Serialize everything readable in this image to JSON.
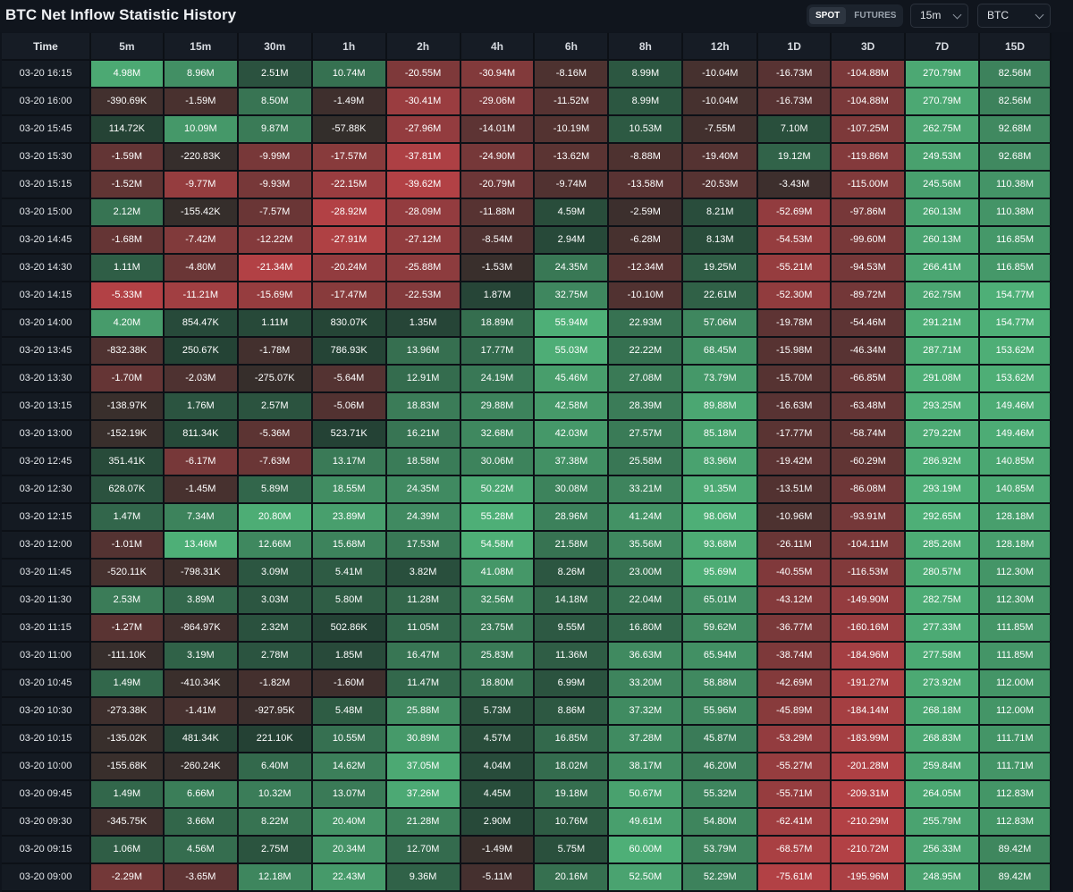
{
  "header": {
    "title": "BTC Net Inflow Statistic History",
    "market_tabs": [
      {
        "label": "SPOT",
        "active": true
      },
      {
        "label": "FUTURES",
        "active": false
      }
    ],
    "interval_select": "15m",
    "asset_select": "BTC"
  },
  "table": {
    "columns": [
      "Time",
      "5m",
      "15m",
      "30m",
      "1h",
      "2h",
      "4h",
      "6h",
      "8h",
      "12h",
      "1D",
      "3D",
      "7D",
      "15D"
    ],
    "rows": [
      [
        "03-20 16:15",
        "4.98M",
        "8.96M",
        "2.51M",
        "10.74M",
        "-20.55M",
        "-30.94M",
        "-8.16M",
        "8.99M",
        "-10.04M",
        "-16.73M",
        "-104.88M",
        "270.79M",
        "82.56M"
      ],
      [
        "03-20 16:00",
        "-390.69K",
        "-1.59M",
        "8.50M",
        "-1.49M",
        "-30.41M",
        "-29.06M",
        "-11.52M",
        "8.99M",
        "-10.04M",
        "-16.73M",
        "-104.88M",
        "270.79M",
        "82.56M"
      ],
      [
        "03-20 15:45",
        "114.72K",
        "10.09M",
        "9.87M",
        "-57.88K",
        "-27.96M",
        "-14.01M",
        "-10.19M",
        "10.53M",
        "-7.55M",
        "7.10M",
        "-107.25M",
        "262.75M",
        "92.68M"
      ],
      [
        "03-20 15:30",
        "-1.59M",
        "-220.83K",
        "-9.99M",
        "-17.57M",
        "-37.81M",
        "-24.90M",
        "-13.62M",
        "-8.88M",
        "-19.40M",
        "19.12M",
        "-119.86M",
        "249.53M",
        "92.68M"
      ],
      [
        "03-20 15:15",
        "-1.52M",
        "-9.77M",
        "-9.93M",
        "-22.15M",
        "-39.62M",
        "-20.79M",
        "-9.74M",
        "-13.58M",
        "-20.53M",
        "-3.43M",
        "-115.00M",
        "245.56M",
        "110.38M"
      ],
      [
        "03-20 15:00",
        "2.12M",
        "-155.42K",
        "-7.57M",
        "-28.92M",
        "-28.09M",
        "-11.88M",
        "4.59M",
        "-2.59M",
        "8.21M",
        "-52.69M",
        "-97.86M",
        "260.13M",
        "110.38M"
      ],
      [
        "03-20 14:45",
        "-1.68M",
        "-7.42M",
        "-12.22M",
        "-27.91M",
        "-27.12M",
        "-8.54M",
        "2.94M",
        "-6.28M",
        "8.13M",
        "-54.53M",
        "-99.60M",
        "260.13M",
        "116.85M"
      ],
      [
        "03-20 14:30",
        "1.11M",
        "-4.80M",
        "-21.34M",
        "-20.24M",
        "-25.88M",
        "-1.53M",
        "24.35M",
        "-12.34M",
        "19.25M",
        "-55.21M",
        "-94.53M",
        "266.41M",
        "116.85M"
      ],
      [
        "03-20 14:15",
        "-5.33M",
        "-11.21M",
        "-15.69M",
        "-17.47M",
        "-22.53M",
        "1.87M",
        "32.75M",
        "-10.10M",
        "22.61M",
        "-52.30M",
        "-89.72M",
        "262.75M",
        "154.77M"
      ],
      [
        "03-20 14:00",
        "4.20M",
        "854.47K",
        "1.11M",
        "830.07K",
        "1.35M",
        "18.89M",
        "55.94M",
        "22.93M",
        "57.06M",
        "-19.78M",
        "-54.46M",
        "291.21M",
        "154.77M"
      ],
      [
        "03-20 13:45",
        "-832.38K",
        "250.67K",
        "-1.78M",
        "786.93K",
        "13.96M",
        "17.77M",
        "55.03M",
        "22.22M",
        "68.45M",
        "-15.98M",
        "-46.34M",
        "287.71M",
        "153.62M"
      ],
      [
        "03-20 13:30",
        "-1.70M",
        "-2.03M",
        "-275.07K",
        "-5.64M",
        "12.91M",
        "24.19M",
        "45.46M",
        "27.08M",
        "73.79M",
        "-15.70M",
        "-66.85M",
        "291.08M",
        "153.62M"
      ],
      [
        "03-20 13:15",
        "-138.97K",
        "1.76M",
        "2.57M",
        "-5.06M",
        "18.83M",
        "29.88M",
        "42.58M",
        "28.39M",
        "89.88M",
        "-16.63M",
        "-63.48M",
        "293.25M",
        "149.46M"
      ],
      [
        "03-20 13:00",
        "-152.19K",
        "811.34K",
        "-5.36M",
        "523.71K",
        "16.21M",
        "32.68M",
        "42.03M",
        "27.57M",
        "85.18M",
        "-17.77M",
        "-58.74M",
        "279.22M",
        "149.46M"
      ],
      [
        "03-20 12:45",
        "351.41K",
        "-6.17M",
        "-7.63M",
        "13.17M",
        "18.58M",
        "30.06M",
        "37.38M",
        "25.58M",
        "83.96M",
        "-19.42M",
        "-60.29M",
        "286.92M",
        "140.85M"
      ],
      [
        "03-20 12:30",
        "628.07K",
        "-1.45M",
        "5.89M",
        "18.55M",
        "24.35M",
        "50.22M",
        "30.08M",
        "33.21M",
        "91.35M",
        "-13.51M",
        "-86.08M",
        "293.19M",
        "140.85M"
      ],
      [
        "03-20 12:15",
        "1.47M",
        "7.34M",
        "20.80M",
        "23.89M",
        "24.39M",
        "55.28M",
        "28.96M",
        "41.24M",
        "98.06M",
        "-10.96M",
        "-93.91M",
        "292.65M",
        "128.18M"
      ],
      [
        "03-20 12:00",
        "-1.01M",
        "13.46M",
        "12.66M",
        "15.68M",
        "17.53M",
        "54.58M",
        "21.58M",
        "35.56M",
        "93.68M",
        "-26.11M",
        "-104.11M",
        "285.26M",
        "128.18M"
      ],
      [
        "03-20 11:45",
        "-520.11K",
        "-798.31K",
        "3.09M",
        "5.41M",
        "3.82M",
        "41.08M",
        "8.26M",
        "23.00M",
        "95.69M",
        "-40.55M",
        "-116.53M",
        "280.57M",
        "112.30M"
      ],
      [
        "03-20 11:30",
        "2.53M",
        "3.89M",
        "3.03M",
        "5.80M",
        "11.28M",
        "32.56M",
        "14.18M",
        "22.04M",
        "65.01M",
        "-43.12M",
        "-149.90M",
        "282.75M",
        "112.30M"
      ],
      [
        "03-20 11:15",
        "-1.27M",
        "-864.97K",
        "2.32M",
        "502.86K",
        "11.05M",
        "23.75M",
        "9.55M",
        "16.80M",
        "59.62M",
        "-36.77M",
        "-160.16M",
        "277.33M",
        "111.85M"
      ],
      [
        "03-20 11:00",
        "-111.10K",
        "3.19M",
        "2.78M",
        "1.85M",
        "16.47M",
        "25.83M",
        "11.36M",
        "36.63M",
        "65.94M",
        "-38.74M",
        "-184.96M",
        "277.58M",
        "111.85M"
      ],
      [
        "03-20 10:45",
        "1.49M",
        "-410.34K",
        "-1.82M",
        "-1.60M",
        "11.47M",
        "18.80M",
        "6.99M",
        "33.20M",
        "58.88M",
        "-42.69M",
        "-191.27M",
        "273.92M",
        "112.00M"
      ],
      [
        "03-20 10:30",
        "-273.38K",
        "-1.41M",
        "-927.95K",
        "5.48M",
        "25.88M",
        "5.73M",
        "8.86M",
        "37.32M",
        "55.96M",
        "-45.89M",
        "-184.14M",
        "268.18M",
        "112.00M"
      ],
      [
        "03-20 10:15",
        "-135.02K",
        "481.34K",
        "221.10K",
        "10.55M",
        "30.89M",
        "4.57M",
        "16.85M",
        "37.28M",
        "45.87M",
        "-53.29M",
        "-183.99M",
        "268.83M",
        "111.71M"
      ],
      [
        "03-20 10:00",
        "-155.68K",
        "-260.24K",
        "6.40M",
        "14.62M",
        "37.05M",
        "4.04M",
        "18.02M",
        "38.17M",
        "46.20M",
        "-55.27M",
        "-201.28M",
        "259.84M",
        "111.71M"
      ],
      [
        "03-20 09:45",
        "1.49M",
        "6.66M",
        "10.32M",
        "13.07M",
        "37.26M",
        "4.45M",
        "19.18M",
        "50.67M",
        "55.32M",
        "-55.71M",
        "-209.31M",
        "264.05M",
        "112.83M"
      ],
      [
        "03-20 09:30",
        "-345.75K",
        "3.66M",
        "8.22M",
        "20.40M",
        "21.28M",
        "2.90M",
        "10.76M",
        "49.61M",
        "54.80M",
        "-62.41M",
        "-210.29M",
        "255.79M",
        "112.83M"
      ],
      [
        "03-20 09:15",
        "1.06M",
        "4.56M",
        "2.75M",
        "20.34M",
        "12.70M",
        "-1.49M",
        "5.75M",
        "60.00M",
        "53.79M",
        "-68.57M",
        "-210.72M",
        "256.33M",
        "89.42M"
      ],
      [
        "03-20 09:00",
        "-2.29M",
        "-3.65M",
        "12.18M",
        "22.43M",
        "9.36M",
        "-5.11M",
        "20.16M",
        "52.50M",
        "52.29M",
        "-75.61M",
        "-195.96M",
        "248.95M",
        "89.42M"
      ]
    ]
  },
  "colors": {
    "positive": "#5bd08b",
    "negative": "#d8474d",
    "neutral": "#1b2a26"
  }
}
